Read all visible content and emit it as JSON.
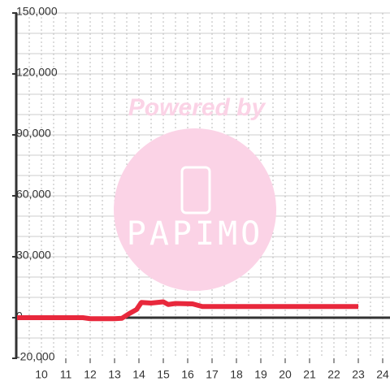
{
  "chart_data": {
    "type": "line",
    "watermark": {
      "top": "Powered by",
      "logo": "PAPIMO"
    },
    "x": [
      9,
      10,
      11,
      11.7,
      12,
      13,
      13.3,
      13.6,
      13.9,
      14.1,
      14.5,
      15,
      15.2,
      15.5,
      16.2,
      16.6,
      17,
      18,
      19,
      20,
      21,
      22,
      23
    ],
    "series": [
      {
        "color": "#e8283c",
        "values": [
          0,
          0,
          0,
          0,
          -500,
          -500,
          -300,
          2000,
          4000,
          7500,
          7200,
          7800,
          6500,
          7000,
          6800,
          5500,
          5500,
          5500,
          5500,
          5500,
          5500,
          5500,
          5500
        ]
      }
    ],
    "xlim": [
      9,
      24.3
    ],
    "xticks": [
      10,
      11,
      12,
      13,
      14,
      15,
      16,
      17,
      18,
      19,
      20,
      21,
      22,
      23,
      24
    ],
    "xgrid": [
      9.5,
      10,
      10.5,
      11,
      11.5,
      12,
      12.5,
      13,
      13.5,
      14,
      14.5,
      15,
      15.5,
      16,
      16.5,
      17,
      17.5,
      18,
      18.5,
      19,
      19.5,
      20,
      20.5,
      21,
      21.5,
      22,
      22.5,
      23,
      23.5,
      24
    ],
    "ylim": [
      -20000,
      150000
    ],
    "yticks": [
      {
        "value": -20000,
        "label": "-20,000"
      },
      0,
      {
        "value": 30000,
        "label": "30,000"
      },
      {
        "value": 60000,
        "label": "60,000"
      },
      {
        "value": 90000,
        "label": "90,000"
      },
      {
        "value": 120000,
        "label": "120,000"
      },
      {
        "value": 150000,
        "label": "150,000"
      }
    ],
    "ygrid": [
      -10000,
      10000,
      20000,
      30000,
      40000,
      50000,
      60000,
      70000,
      80000,
      90000,
      100000,
      110000,
      120000,
      130000,
      140000,
      150000
    ],
    "grid": true
  }
}
